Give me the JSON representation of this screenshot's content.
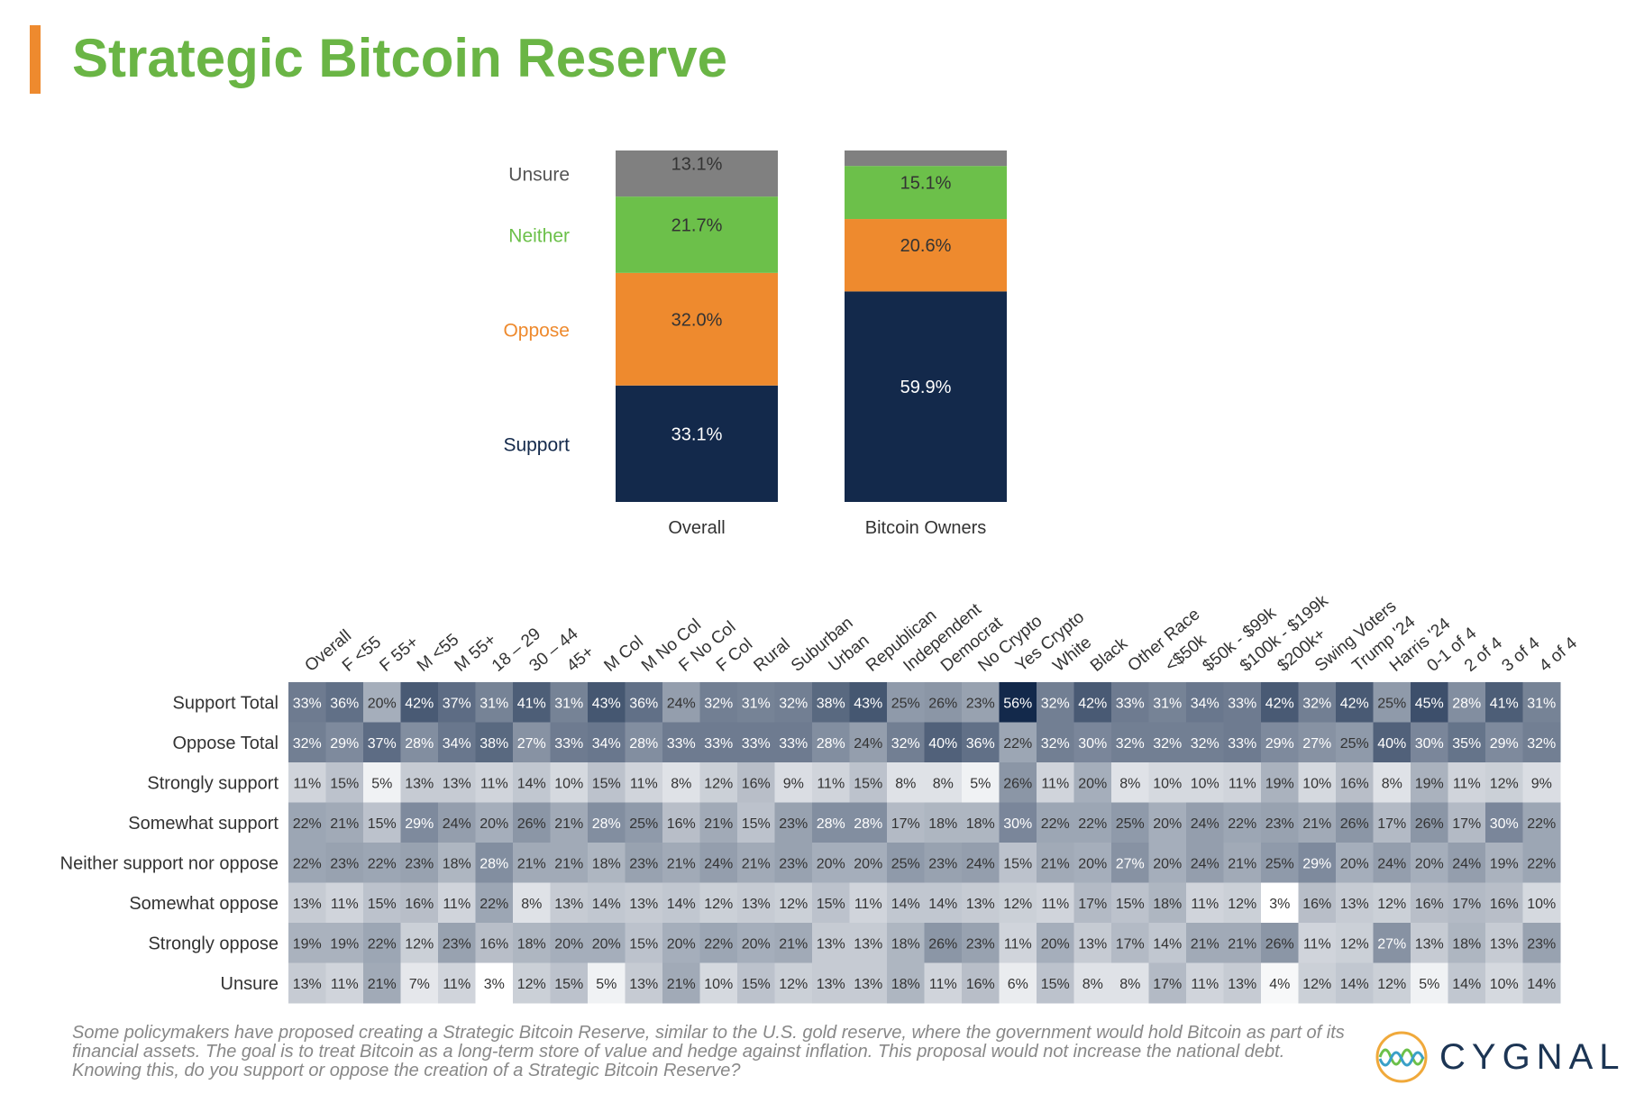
{
  "title": "Strategic Bitcoin Reserve",
  "colors": {
    "accent": "#ee8a2e",
    "title": "#6ab545",
    "support": "#13294b",
    "oppose": "#ee8a2e",
    "neither": "#6cc04a",
    "unsure": "#808080"
  },
  "chart_data": [
    {
      "type": "bar",
      "stacked": true,
      "categories": [
        "Overall",
        "Bitcoin Owners"
      ],
      "series": [
        {
          "name": "Support",
          "values": [
            33.1,
            59.9
          ],
          "labels": [
            "33.1%",
            "59.9%"
          ]
        },
        {
          "name": "Oppose",
          "values": [
            32.0,
            20.6
          ],
          "labels": [
            "32.0%",
            "20.6%"
          ]
        },
        {
          "name": "Neither",
          "values": [
            21.7,
            15.1
          ],
          "labels": [
            "21.7%",
            "15.1%"
          ]
        },
        {
          "name": "Unsure",
          "values": [
            13.1,
            4.4
          ],
          "labels": [
            "13.1%",
            ""
          ]
        }
      ]
    },
    {
      "type": "heatmap",
      "columns": [
        "Overall",
        "F <55",
        "F 55+",
        "M <55",
        "M 55+",
        "18 – 29",
        "30 – 44",
        "45+",
        "M Col",
        "M No Col",
        "F No Col",
        "F Col",
        "Rural",
        "Suburban",
        "Urban",
        "Republican",
        "Independent",
        "Democrat",
        "No Crypto",
        "Yes Crypto",
        "White",
        "Black",
        "Other Race",
        "<$50k",
        "$50k - $99k",
        "$100k - $199k",
        "$200k+",
        "Swing Voters",
        "Trump '24",
        "Harris '24",
        "0-1 of 4",
        "2 of 4",
        "3 of 4",
        "4 of 4"
      ],
      "rows": [
        {
          "label": "Support Total",
          "values": [
            33,
            36,
            20,
            42,
            37,
            31,
            41,
            31,
            43,
            36,
            24,
            32,
            31,
            32,
            38,
            43,
            25,
            26,
            23,
            56,
            32,
            42,
            33,
            31,
            34,
            33,
            42,
            32,
            42,
            25,
            45,
            28,
            41,
            31
          ]
        },
        {
          "label": "Oppose Total",
          "values": [
            32,
            29,
            37,
            28,
            34,
            38,
            27,
            33,
            34,
            28,
            33,
            33,
            33,
            33,
            28,
            24,
            32,
            40,
            36,
            22,
            32,
            30,
            32,
            32,
            32,
            33,
            29,
            27,
            25,
            40,
            30,
            35,
            29,
            32
          ]
        },
        {
          "label": "Strongly support",
          "values": [
            11,
            15,
            5,
            13,
            13,
            11,
            14,
            10,
            15,
            11,
            8,
            12,
            16,
            9,
            11,
            15,
            8,
            8,
            5,
            26,
            11,
            20,
            8,
            10,
            10,
            11,
            19,
            10,
            16,
            8,
            19,
            11,
            12,
            9
          ]
        },
        {
          "label": "Somewhat support",
          "values": [
            22,
            21,
            15,
            29,
            24,
            20,
            26,
            21,
            28,
            25,
            16,
            21,
            15,
            23,
            28,
            28,
            17,
            18,
            18,
            30,
            22,
            22,
            25,
            20,
            24,
            22,
            23,
            21,
            26,
            17,
            26,
            17,
            30,
            22
          ]
        },
        {
          "label": "Neither support nor oppose",
          "values": [
            22,
            23,
            22,
            23,
            18,
            28,
            21,
            21,
            18,
            23,
            21,
            24,
            21,
            23,
            20,
            20,
            25,
            23,
            24,
            15,
            21,
            20,
            27,
            20,
            24,
            21,
            25,
            29,
            20,
            24,
            20,
            24,
            19,
            22
          ]
        },
        {
          "label": "Somewhat oppose",
          "values": [
            13,
            11,
            15,
            16,
            11,
            22,
            8,
            13,
            14,
            13,
            14,
            12,
            13,
            12,
            15,
            11,
            14,
            14,
            13,
            12,
            11,
            17,
            15,
            18,
            11,
            12,
            3,
            16,
            13,
            12,
            16,
            17,
            16,
            10
          ]
        },
        {
          "label": "Strongly oppose",
          "values": [
            19,
            19,
            22,
            12,
            23,
            16,
            18,
            20,
            20,
            15,
            20,
            22,
            20,
            21,
            13,
            13,
            18,
            26,
            23,
            11,
            20,
            13,
            17,
            14,
            21,
            21,
            26,
            11,
            12,
            27,
            13,
            18,
            13,
            23
          ]
        },
        {
          "label": "Unsure",
          "values": [
            13,
            11,
            21,
            7,
            11,
            3,
            12,
            15,
            5,
            13,
            21,
            10,
            15,
            12,
            13,
            13,
            18,
            11,
            16,
            6,
            15,
            8,
            8,
            17,
            11,
            13,
            4,
            12,
            14,
            12,
            5,
            14,
            10,
            14
          ]
        }
      ]
    }
  ],
  "footnote": "Some policymakers have proposed creating a Strategic Bitcoin Reserve, similar to the U.S. gold reserve, where the government would hold Bitcoin as part of its financial assets. The goal is to treat Bitcoin as a long-term store of value and hedge against inflation. This proposal would not increase the national debt. Knowing this, do you support or oppose the creation of a Strategic Bitcoin Reserve?",
  "logo": {
    "text": "CYGNAL",
    "icon": "cygnal-wave-logo-icon"
  }
}
